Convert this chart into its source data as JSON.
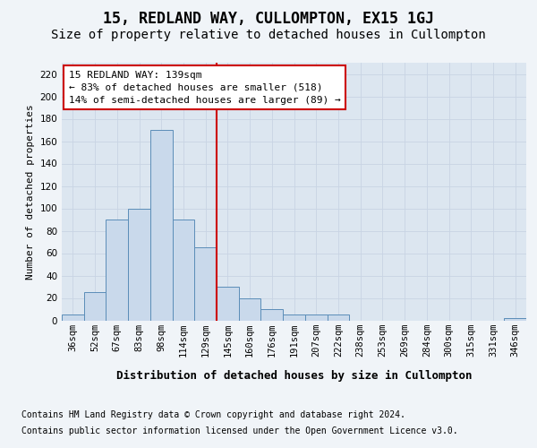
{
  "title": "15, REDLAND WAY, CULLOMPTON, EX15 1GJ",
  "subtitle": "Size of property relative to detached houses in Cullompton",
  "xlabel": "Distribution of detached houses by size in Cullompton",
  "ylabel": "Number of detached properties",
  "categories": [
    "36sqm",
    "52sqm",
    "67sqm",
    "83sqm",
    "98sqm",
    "114sqm",
    "129sqm",
    "145sqm",
    "160sqm",
    "176sqm",
    "191sqm",
    "207sqm",
    "222sqm",
    "238sqm",
    "253sqm",
    "269sqm",
    "284sqm",
    "300sqm",
    "315sqm",
    "331sqm",
    "346sqm"
  ],
  "values": [
    5,
    25,
    90,
    100,
    170,
    90,
    65,
    30,
    20,
    10,
    5,
    5,
    5,
    0,
    0,
    0,
    0,
    0,
    0,
    0,
    2
  ],
  "bar_color": "#c9d9eb",
  "bar_edge_color": "#5b8db8",
  "grid_color": "#c8d4e4",
  "background_color": "#dce6f0",
  "fig_background_color": "#f0f4f8",
  "annotation_box_color": "#ffffff",
  "annotation_border_color": "#cc0000",
  "line_color": "#cc0000",
  "line_x_index": 6.5,
  "annotation_title": "15 REDLAND WAY: 139sqm",
  "annotation_line1": "← 83% of detached houses are smaller (518)",
  "annotation_line2": "14% of semi-detached houses are larger (89) →",
  "footer1": "Contains HM Land Registry data © Crown copyright and database right 2024.",
  "footer2": "Contains public sector information licensed under the Open Government Licence v3.0.",
  "ylim": [
    0,
    230
  ],
  "yticks": [
    0,
    20,
    40,
    60,
    80,
    100,
    120,
    140,
    160,
    180,
    200,
    220
  ],
  "title_fontsize": 12,
  "subtitle_fontsize": 10,
  "xlabel_fontsize": 9,
  "ylabel_fontsize": 8,
  "tick_fontsize": 7.5,
  "annotation_fontsize": 8,
  "footer_fontsize": 7
}
